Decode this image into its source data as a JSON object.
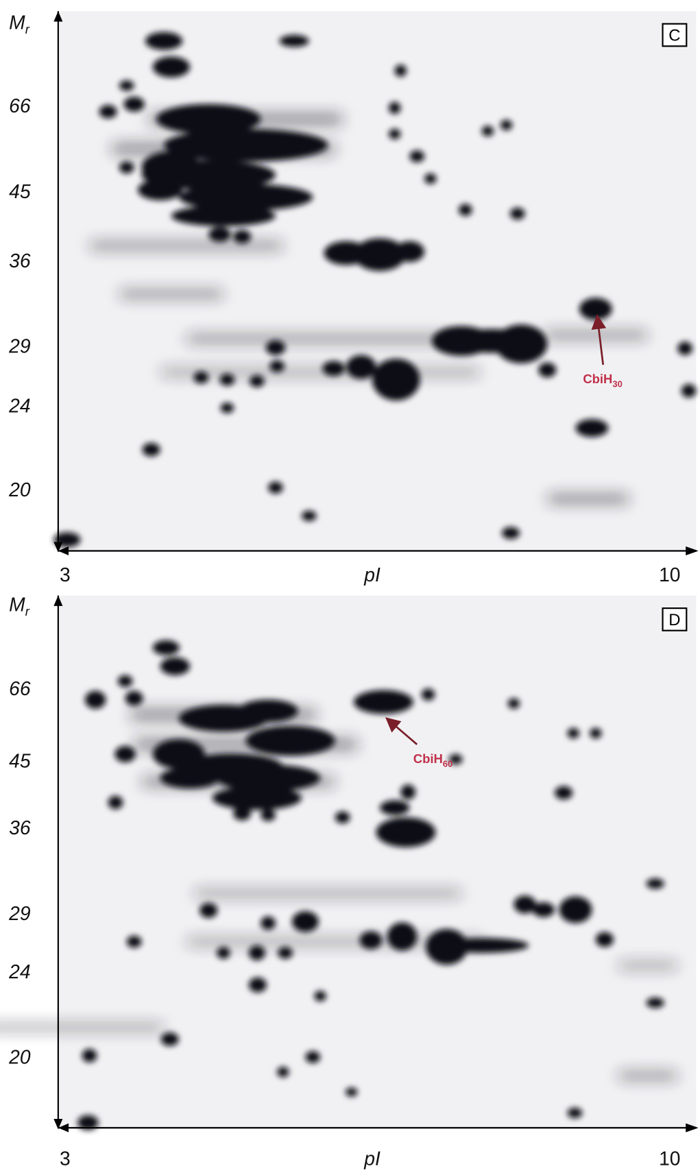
{
  "panels": [
    {
      "label": "C",
      "y_axis_title": {
        "main": "M",
        "sub": "r"
      },
      "y_labels": [
        "66",
        "45",
        "36",
        "29",
        "24",
        "20"
      ],
      "x_labels": [
        "3",
        "10"
      ],
      "x_axis_title": "pI",
      "annotation": {
        "main": "CbiH",
        "sub": "30"
      }
    },
    {
      "label": "D",
      "y_axis_title": {
        "main": "M",
        "sub": "r"
      },
      "y_labels": [
        "66",
        "45",
        "36",
        "29",
        "24",
        "20"
      ],
      "x_labels": [
        "3",
        "10"
      ],
      "x_axis_title": "pI",
      "annotation": {
        "main": "CbiH",
        "sub": "60"
      }
    }
  ]
}
